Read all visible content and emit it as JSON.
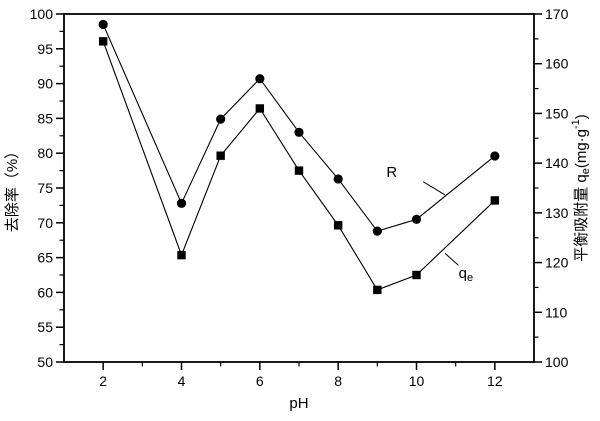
{
  "chart_data": {
    "type": "line",
    "title": "",
    "xlabel": "pH",
    "x": [
      2,
      4,
      5,
      6,
      7,
      8,
      9,
      10,
      12
    ],
    "xlim": [
      1,
      13
    ],
    "x_major_ticks": [
      2,
      4,
      6,
      8,
      10,
      12
    ],
    "x_minor_ticks": [
      3,
      5,
      7,
      9,
      11
    ],
    "grid": false,
    "legend": "none (annotated labels on plot)",
    "background_color": "#ffffff",
    "line_color": "#000000",
    "axes": {
      "left": {
        "label": "去除率（%）",
        "lim": [
          50,
          100
        ],
        "major_ticks": [
          50,
          55,
          60,
          65,
          70,
          75,
          80,
          85,
          90,
          95,
          100
        ],
        "minor_ticks": [
          52.5,
          57.5,
          62.5,
          67.5,
          72.5,
          77.5,
          82.5,
          87.5,
          92.5,
          97.5
        ]
      },
      "right": {
        "label": "平衡吸附量 qe(mg·g⁻¹)",
        "label_parts": [
          {
            "t": "平衡吸附量 q"
          },
          {
            "t": "e",
            "style": "sub"
          },
          {
            "t": "(mg·g"
          },
          {
            "t": "-1",
            "style": "sup"
          },
          {
            "t": ")"
          }
        ],
        "lim": [
          100,
          170
        ],
        "major_ticks": [
          100,
          110,
          120,
          130,
          140,
          150,
          160,
          170
        ],
        "minor_ticks": [
          105,
          115,
          125,
          135,
          145,
          155,
          165
        ]
      }
    },
    "series": [
      {
        "name": "R",
        "axis": "left",
        "marker": "circle",
        "values": [
          98.5,
          72.8,
          84.9,
          90.7,
          83.0,
          76.3,
          68.8,
          70.5,
          79.6
        ]
      },
      {
        "name": "qe",
        "axis": "right",
        "marker": "square",
        "values": [
          164.5,
          121.5,
          141.5,
          151.0,
          138.5,
          127.5,
          114.5,
          117.5,
          132.5
        ]
      }
    ],
    "annotations": [
      {
        "name": "R",
        "parts": [
          {
            "t": "R"
          }
        ],
        "x": 9.37,
        "y": 77.3,
        "axis": "left",
        "leader": [
          [
            10.17,
            75.9
          ],
          [
            10.73,
            74.0
          ]
        ]
      },
      {
        "name": "qe",
        "parts": [
          {
            "t": "q"
          },
          {
            "t": "e",
            "style": "sub"
          }
        ],
        "x": 11.26,
        "y": 62.8,
        "axis": "left",
        "leader": [
          [
            10.73,
            65.6
          ],
          [
            11.07,
            63.9
          ]
        ]
      }
    ]
  }
}
